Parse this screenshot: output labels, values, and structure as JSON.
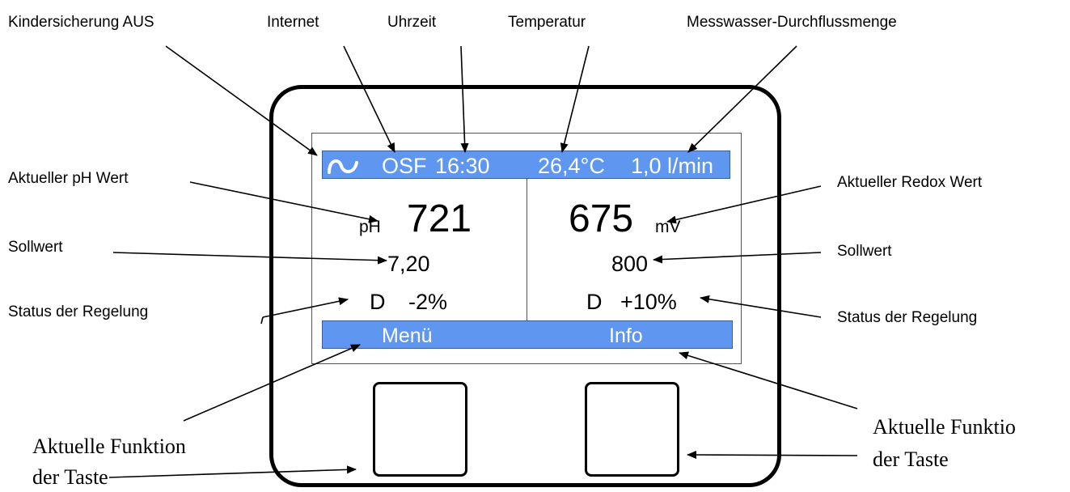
{
  "labels": {
    "child_lock": "Kindersicherung AUS",
    "internet": "Internet",
    "time": "Uhrzeit",
    "temperature": "Temperatur",
    "flow": "Messwasser-Durchflussmenge",
    "ph_current": "Aktueller pH Wert",
    "redox_current": "Aktueller Redox Wert",
    "setpoint_left": "Sollwert",
    "setpoint_right": "Sollwert",
    "status_left": "Status der Regelung",
    "status_right": "Status der Regelung",
    "func_left_line1": "Aktuelle Funktion",
    "func_left_line2": "der Taste",
    "func_right_line1": "Aktuelle Funktio",
    "func_right_line2": "der Taste"
  },
  "status_bar": {
    "icon": "child-lock-off-icon",
    "osf": "OSF",
    "time": "16:30",
    "temperature": "26,4°C",
    "flow": "1,0 l/min"
  },
  "ph": {
    "unit": "pH",
    "value": "721",
    "setpoint": "7,20",
    "mode": "D",
    "status": "-2%"
  },
  "redox": {
    "unit": "mV",
    "value": "675",
    "setpoint": "800",
    "mode": "D",
    "status": "+10%"
  },
  "function_bar": {
    "left": "Menü",
    "right": "Info"
  },
  "colors": {
    "bar": "#5e96f0",
    "bar_text": "#ffffff"
  }
}
